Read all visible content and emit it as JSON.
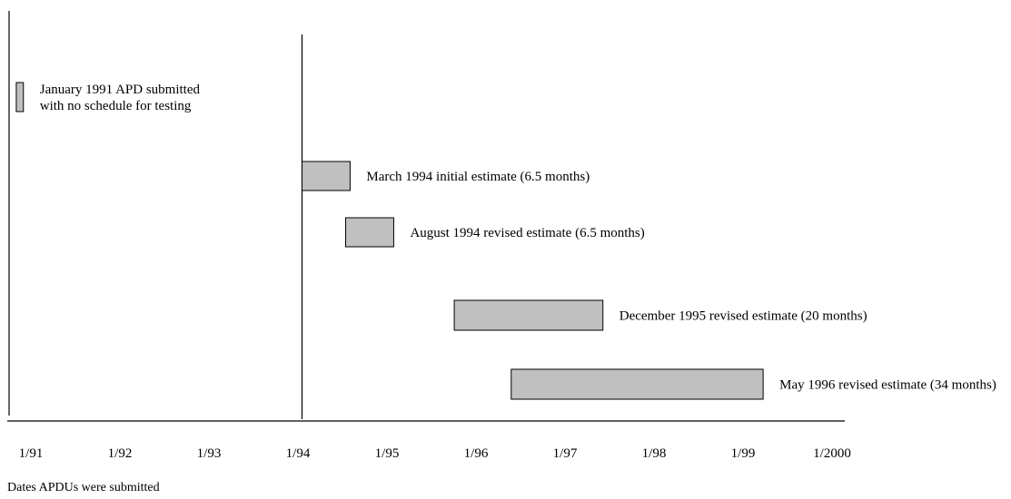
{
  "chart_data": {
    "type": "bar",
    "title": "",
    "xlabel": "Dates APDUs were submitted",
    "ylabel": "",
    "x_tick_labels": [
      "1/91",
      "1/92",
      "1/93",
      "1/94",
      "1/95",
      "1/96",
      "1/97",
      "1/98",
      "1/99",
      "1/2000"
    ],
    "x_ticks": [
      1991,
      1992,
      1993,
      1994,
      1995,
      1996,
      1997,
      1998,
      1999,
      2000
    ],
    "xlim": [
      1991,
      2000.25
    ],
    "grid": false,
    "legend": "none",
    "bar_color": "#c0c0c0",
    "vertical_lines": [
      1991,
      1994.25
    ],
    "bars": [
      {
        "label_lines": [
          "January 1991 APD submitted",
          "with no schedule for testing"
        ],
        "start": 1991.04,
        "end": 1991.12
      },
      {
        "label_lines": [
          "March 1994 initial estimate (6.5 months)"
        ],
        "start": 1994.25,
        "end": 1994.79
      },
      {
        "label_lines": [
          "August 1994 revised estimate (6.5 months)"
        ],
        "start": 1994.74,
        "end": 1995.28
      },
      {
        "label_lines": [
          "December 1995 revised estimate (20 months)"
        ],
        "start": 1995.96,
        "end": 1997.63
      },
      {
        "label_lines": [
          "May 1996 revised estimate (34 months)"
        ],
        "start": 1996.6,
        "end": 1999.43
      }
    ]
  }
}
